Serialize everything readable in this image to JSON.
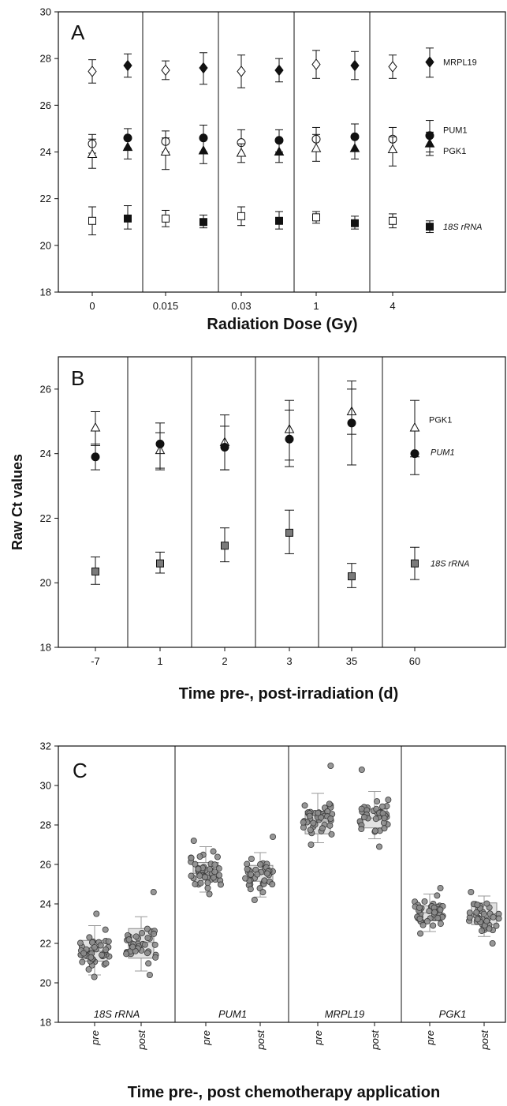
{
  "y_axis_title": "Raw Ct values",
  "chart_data": [
    {
      "panel": "A",
      "type": "scatter",
      "xlabel": "Radiation Dose (Gy)",
      "ylabel": "",
      "ylim": [
        18,
        30
      ],
      "yticks": [
        18,
        20,
        22,
        24,
        26,
        28,
        30
      ],
      "groups": [
        "0",
        "0.015",
        "0.03",
        "1",
        "4"
      ],
      "series": [
        {
          "name": "MRPL19",
          "label_italic": false,
          "marker": "diamond",
          "pre": [
            {
              "y": 27.45,
              "lo": 26.95,
              "hi": 27.95
            },
            {
              "y": 27.5,
              "lo": 27.1,
              "hi": 27.9
            },
            {
              "y": 27.45,
              "lo": 26.75,
              "hi": 28.15
            },
            {
              "y": 27.75,
              "lo": 27.15,
              "hi": 28.35
            },
            {
              "y": 27.65,
              "lo": 27.15,
              "hi": 28.15
            }
          ],
          "post": [
            {
              "y": 27.7,
              "lo": 27.2,
              "hi": 28.2
            },
            {
              "y": 27.6,
              "lo": 26.9,
              "hi": 28.25
            },
            {
              "y": 27.5,
              "lo": 27.0,
              "hi": 28.0
            },
            {
              "y": 27.7,
              "lo": 27.1,
              "hi": 28.3
            },
            {
              "y": 27.85,
              "lo": 27.2,
              "hi": 28.45
            }
          ]
        },
        {
          "name": "PUM1",
          "label_italic": false,
          "marker": "circle",
          "pre": [
            {
              "y": 24.35,
              "lo": 23.95,
              "hi": 24.75
            },
            {
              "y": 24.45,
              "lo": 24.0,
              "hi": 24.9
            },
            {
              "y": 24.4,
              "lo": 23.85,
              "hi": 24.95
            },
            {
              "y": 24.55,
              "lo": 24.05,
              "hi": 25.05
            },
            {
              "y": 24.55,
              "lo": 24.0,
              "hi": 25.05
            }
          ],
          "post": [
            {
              "y": 24.6,
              "lo": 24.15,
              "hi": 25.0
            },
            {
              "y": 24.6,
              "lo": 24.0,
              "hi": 25.15
            },
            {
              "y": 24.5,
              "lo": 24.0,
              "hi": 24.95
            },
            {
              "y": 24.65,
              "lo": 24.05,
              "hi": 25.2
            },
            {
              "y": 24.7,
              "lo": 24.0,
              "hi": 25.35
            }
          ]
        },
        {
          "name": "PGK1",
          "label_italic": false,
          "marker": "triangle",
          "pre": [
            {
              "y": 23.9,
              "lo": 23.3,
              "hi": 24.55
            },
            {
              "y": 24.0,
              "lo": 23.25,
              "hi": 24.6
            },
            {
              "y": 23.95,
              "lo": 23.55,
              "hi": 24.35
            },
            {
              "y": 24.15,
              "lo": 23.6,
              "hi": 24.75
            },
            {
              "y": 24.1,
              "lo": 23.4,
              "hi": 24.65
            }
          ],
          "post": [
            {
              "y": 24.2,
              "lo": 23.7,
              "hi": 24.6
            },
            {
              "y": 24.05,
              "lo": 23.5,
              "hi": 24.6
            },
            {
              "y": 24.0,
              "lo": 23.55,
              "hi": 24.45
            },
            {
              "y": 24.15,
              "lo": 23.7,
              "hi": 24.65
            },
            {
              "y": 24.35,
              "lo": 23.85,
              "hi": 24.85
            }
          ]
        },
        {
          "name": "18S rRNA",
          "label_italic": true,
          "marker": "square",
          "pre": [
            {
              "y": 21.05,
              "lo": 20.45,
              "hi": 21.65
            },
            {
              "y": 21.15,
              "lo": 20.8,
              "hi": 21.5
            },
            {
              "y": 21.25,
              "lo": 20.85,
              "hi": 21.65
            },
            {
              "y": 21.2,
              "lo": 20.95,
              "hi": 21.45
            },
            {
              "y": 21.05,
              "lo": 20.75,
              "hi": 21.35
            }
          ],
          "post": [
            {
              "y": 21.15,
              "lo": 20.7,
              "hi": 21.7
            },
            {
              "y": 21.0,
              "lo": 20.75,
              "hi": 21.3
            },
            {
              "y": 21.05,
              "lo": 20.7,
              "hi": 21.45
            },
            {
              "y": 20.95,
              "lo": 20.7,
              "hi": 21.25
            },
            {
              "y": 20.8,
              "lo": 20.55,
              "hi": 21.05
            }
          ]
        }
      ]
    },
    {
      "panel": "B",
      "type": "scatter",
      "xlabel": "Time pre-, post-irradiation (d)",
      "ylabel": "",
      "ylim": [
        18,
        27
      ],
      "yticks": [
        18,
        20,
        22,
        24,
        26
      ],
      "groups": [
        "-7",
        "1",
        "2",
        "3",
        "35",
        "60"
      ],
      "series": [
        {
          "name": "PGK1",
          "label_italic": false,
          "marker": "triangle-open",
          "values": [
            {
              "y": 24.8,
              "lo": 24.25,
              "hi": 25.3
            },
            {
              "y": 24.1,
              "lo": 23.5,
              "hi": 24.65
            },
            {
              "y": 24.35,
              "lo": 23.5,
              "hi": 25.2
            },
            {
              "y": 24.75,
              "lo": 23.8,
              "hi": 25.65
            },
            {
              "y": 25.3,
              "lo": 24.6,
              "hi": 26.0
            },
            {
              "y": 24.8,
              "lo": 23.9,
              "hi": 25.65
            }
          ]
        },
        {
          "name": "PUM1",
          "label_italic": true,
          "marker": "circle-filled",
          "values": [
            {
              "y": 23.9,
              "lo": 23.5,
              "hi": 24.3
            },
            {
              "y": 24.3,
              "lo": 23.55,
              "hi": 24.95
            },
            {
              "y": 24.2,
              "lo": 23.5,
              "hi": 24.85
            },
            {
              "y": 24.45,
              "lo": 23.6,
              "hi": 25.35
            },
            {
              "y": 24.95,
              "lo": 23.65,
              "hi": 26.25
            },
            {
              "y": 24.0,
              "lo": 23.35,
              "hi": 24.7
            }
          ]
        },
        {
          "name": "18S rRNA",
          "label_italic": true,
          "marker": "square-gray",
          "values": [
            {
              "y": 20.35,
              "lo": 19.95,
              "hi": 20.8
            },
            {
              "y": 20.6,
              "lo": 20.3,
              "hi": 20.95
            },
            {
              "y": 21.15,
              "lo": 20.65,
              "hi": 21.7
            },
            {
              "y": 21.55,
              "lo": 20.9,
              "hi": 22.25
            },
            {
              "y": 20.2,
              "lo": 19.85,
              "hi": 20.6
            },
            {
              "y": 20.6,
              "lo": 20.1,
              "hi": 21.1
            }
          ]
        }
      ]
    },
    {
      "panel": "C",
      "type": "box",
      "xlabel": "Time pre-, post chemotherapy application",
      "ylabel": "",
      "ylim": [
        18,
        32
      ],
      "yticks": [
        18,
        20,
        22,
        24,
        26,
        28,
        30,
        32
      ],
      "categories": [
        "pre",
        "post"
      ],
      "groups": [
        {
          "name": "18S rRNA",
          "boxes": [
            {
              "label": "pre",
              "q1": 21.1,
              "median": 21.6,
              "q3": 22.15,
              "whisker_lo": 20.4,
              "whisker_hi": 22.9,
              "n": 45,
              "min": 20.3,
              "max": 23.5
            },
            {
              "label": "post",
              "q1": 21.25,
              "median": 22.05,
              "q3": 22.75,
              "whisker_lo": 20.6,
              "whisker_hi": 23.35,
              "n": 40,
              "min": 20.4,
              "max": 24.6
            }
          ]
        },
        {
          "name": "PUM1",
          "boxes": [
            {
              "label": "pre",
              "q1": 25.2,
              "median": 25.55,
              "q3": 26.1,
              "whisker_lo": 24.6,
              "whisker_hi": 26.9,
              "n": 45,
              "min": 24.5,
              "max": 27.2
            },
            {
              "label": "post",
              "q1": 25.15,
              "median": 25.5,
              "q3": 25.95,
              "whisker_lo": 24.35,
              "whisker_hi": 26.6,
              "n": 40,
              "min": 24.2,
              "max": 27.4
            }
          ]
        },
        {
          "name": "MRPL19",
          "boxes": [
            {
              "label": "pre",
              "q1": 27.55,
              "median": 28.2,
              "q3": 28.7,
              "whisker_lo": 27.1,
              "whisker_hi": 29.6,
              "n": 45,
              "min": 27.0,
              "max": 31.0
            },
            {
              "label": "post",
              "q1": 27.85,
              "median": 28.35,
              "q3": 28.8,
              "whisker_lo": 27.3,
              "whisker_hi": 29.7,
              "n": 40,
              "min": 26.9,
              "max": 30.8
            }
          ]
        },
        {
          "name": "PGK1",
          "boxes": [
            {
              "label": "pre",
              "q1": 23.15,
              "median": 23.55,
              "q3": 23.9,
              "whisker_lo": 22.6,
              "whisker_hi": 24.5,
              "n": 45,
              "min": 22.5,
              "max": 24.8
            },
            {
              "label": "post",
              "q1": 22.95,
              "median": 23.5,
              "q3": 24.05,
              "whisker_lo": 22.35,
              "whisker_hi": 24.4,
              "n": 40,
              "min": 22.0,
              "max": 24.6
            }
          ]
        }
      ]
    }
  ]
}
